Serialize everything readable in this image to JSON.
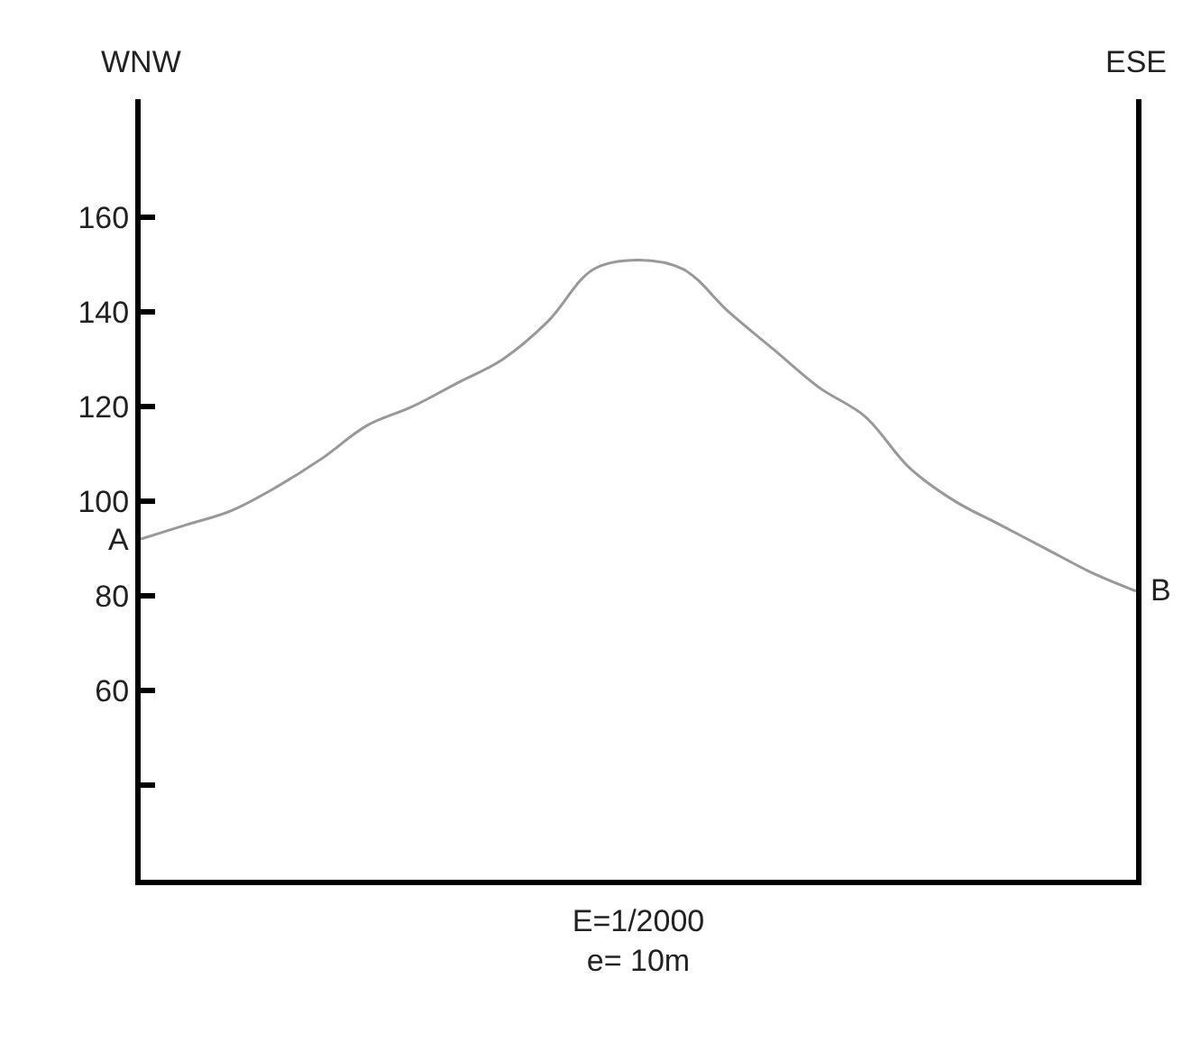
{
  "chart_data": {
    "type": "line",
    "xlabel": "E=1/2000\ne= 10m",
    "categories": [
      null,
      null,
      null,
      null,
      null,
      null,
      null,
      null,
      null,
      null,
      null,
      null,
      null,
      null,
      null,
      null,
      null,
      null,
      null,
      null,
      null,
      null,
      null
    ],
    "series": [
      {
        "color": "#999999",
        "values": [
          92,
          95,
          98,
          103,
          109,
          116,
          120,
          125,
          130,
          138,
          149,
          151,
          149,
          140,
          132,
          124,
          118,
          107,
          100,
          95,
          90,
          85,
          81
        ]
      }
    ],
    "annotations": [
      "WNW",
      "ESE",
      "A",
      "B"
    ],
    "ylim": [
      20,
      185
    ],
    "yticks": [
      {
        "value": 40,
        "label": null
      },
      60,
      80,
      100,
      120,
      140,
      160
    ],
    "tick_labels": "y",
    "marker": "none",
    "line_style": "solid"
  }
}
